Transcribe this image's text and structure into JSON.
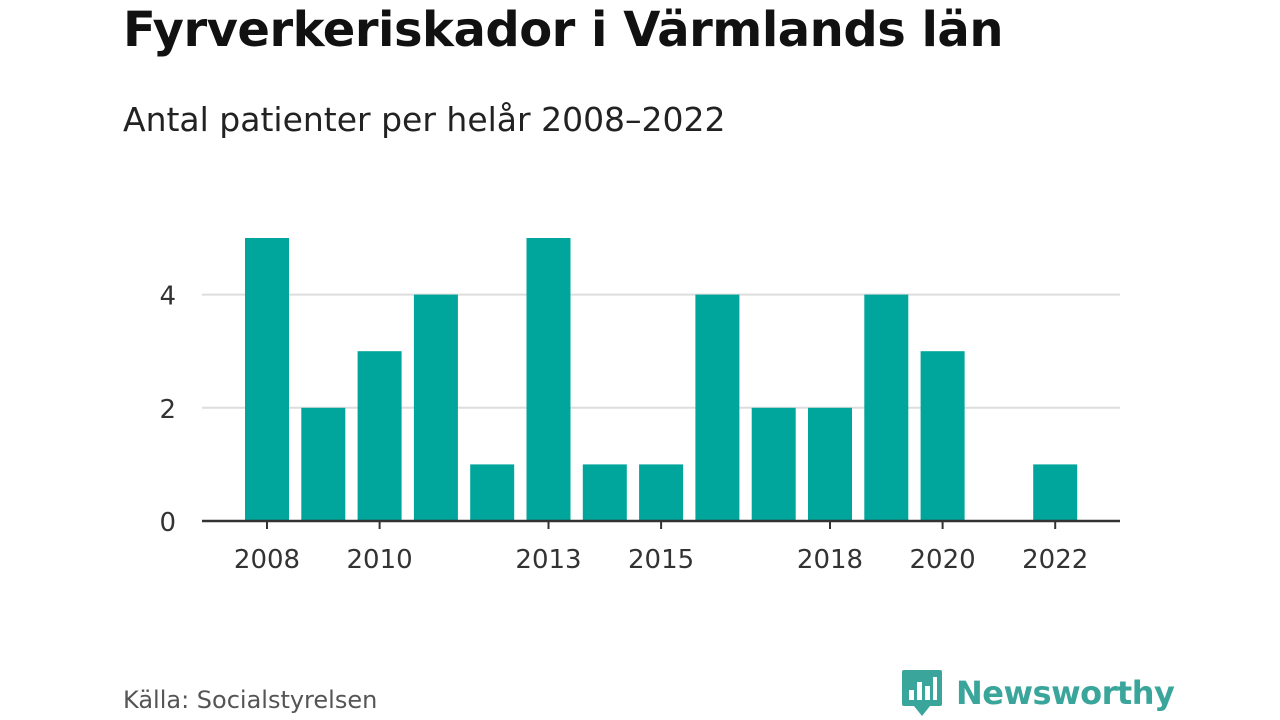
{
  "title": "Fyrverkeriskador i Värmlands län",
  "subtitle": "Antal patienter per helår 2008–2022",
  "source": "Källa: Socialstyrelsen",
  "brand": {
    "name": "Newsworthy",
    "icon": "newsworthy-logo-icon",
    "color": "#3aa59a"
  },
  "colors": {
    "bar": "#00a59b",
    "grid": "#dddddd",
    "axis": "#333333",
    "tick_text": "#333333"
  },
  "chart_data": {
    "type": "bar",
    "categories": [
      "2008",
      "2009",
      "2010",
      "2011",
      "2012",
      "2013",
      "2014",
      "2015",
      "2016",
      "2017",
      "2018",
      "2019",
      "2020",
      "2021",
      "2022"
    ],
    "values": [
      5,
      2,
      3,
      4,
      1,
      5,
      1,
      1,
      4,
      2,
      2,
      4,
      3,
      0,
      1
    ],
    "x_tick_labels": [
      "2008",
      "2010",
      "2013",
      "2015",
      "2018",
      "2020",
      "2022"
    ],
    "y_ticks": [
      0,
      2,
      4
    ],
    "ylim": [
      0,
      5
    ],
    "grid": true,
    "xlabel": "",
    "ylabel": ""
  }
}
